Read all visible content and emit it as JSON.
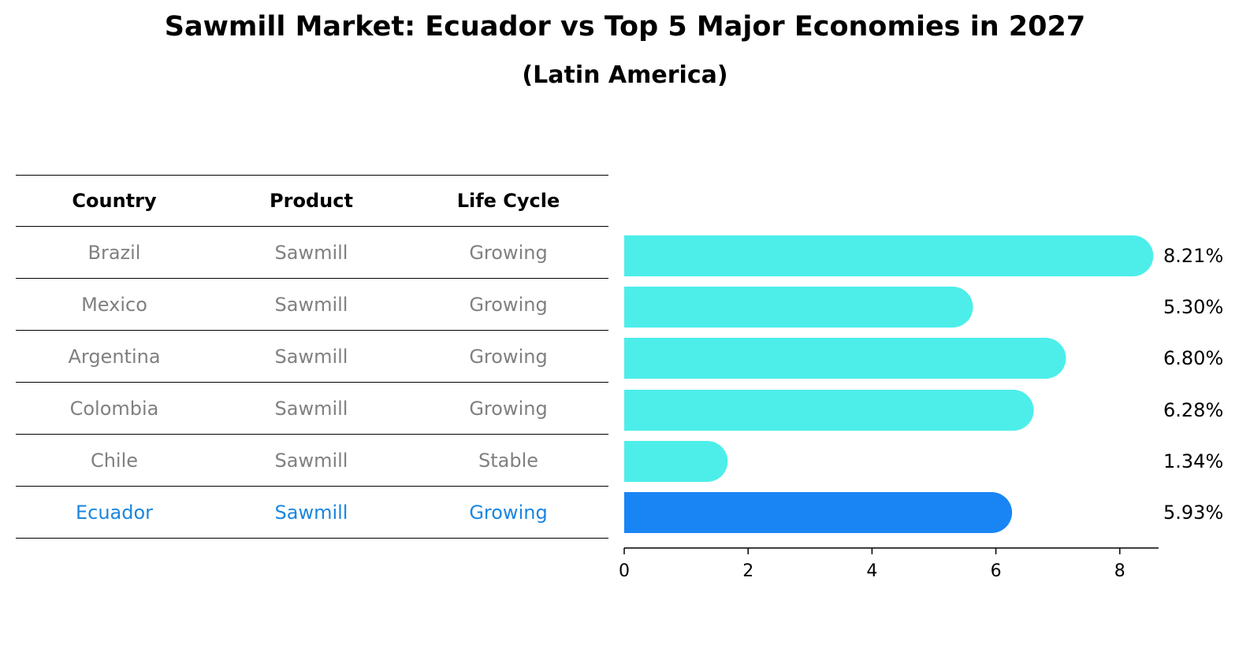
{
  "title": "Sawmill Market: Ecuador vs Top 5 Major Economies in 2027",
  "subtitle": "(Latin America)",
  "table": {
    "headers": [
      "Country",
      "Product",
      "Life Cycle"
    ],
    "rows": [
      {
        "country": "Brazil",
        "product": "Sawmill",
        "life_cycle": "Growing"
      },
      {
        "country": "Mexico",
        "product": "Sawmill",
        "life_cycle": "Growing"
      },
      {
        "country": "Argentina",
        "product": "Sawmill",
        "life_cycle": "Growing"
      },
      {
        "country": "Colombia",
        "product": "Sawmill",
        "life_cycle": "Growing"
      },
      {
        "country": "Chile",
        "product": "Sawmill",
        "life_cycle": "Stable"
      },
      {
        "country": "Ecuador",
        "product": "Sawmill",
        "life_cycle": "Growing"
      }
    ]
  },
  "chart_data": {
    "type": "bar",
    "orientation": "horizontal",
    "categories": [
      "Brazil",
      "Mexico",
      "Argentina",
      "Colombia",
      "Chile",
      "Ecuador"
    ],
    "values": [
      8.21,
      5.3,
      6.8,
      6.28,
      1.34,
      5.93
    ],
    "value_labels": [
      "8.21%",
      "5.30%",
      "6.80%",
      "6.28%",
      "1.34%",
      "5.93%"
    ],
    "highlight_category": "Ecuador",
    "xlim": [
      0,
      8.6
    ],
    "xticks": [
      0,
      2,
      4,
      6,
      8
    ],
    "colors": {
      "default": "#4deeea",
      "highlight": "#1985f5"
    },
    "grid": false
  }
}
